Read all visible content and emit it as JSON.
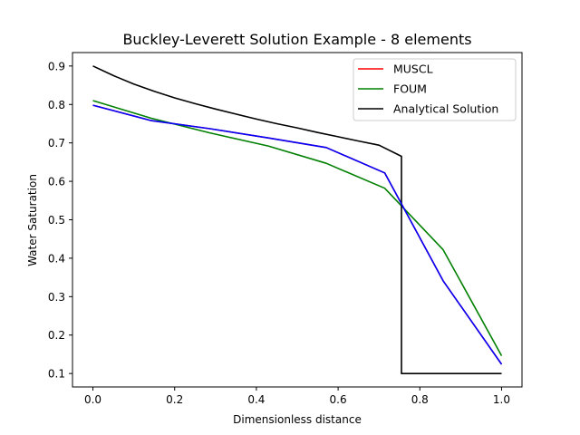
{
  "chart_data": {
    "type": "line",
    "title": "Buckley-Leverett Solution Example - 8 elements",
    "xlabel": "Dimensionless distance",
    "ylabel": "Water Saturation",
    "xlim": [
      -0.05,
      1.05
    ],
    "ylim": [
      0.065,
      0.935
    ],
    "xticks": [
      0.0,
      0.2,
      0.4,
      0.6,
      0.8,
      1.0
    ],
    "xtick_labels": [
      "0.0",
      "0.2",
      "0.4",
      "0.6",
      "0.8",
      "1.0"
    ],
    "yticks": [
      0.1,
      0.2,
      0.3,
      0.4,
      0.5,
      0.6,
      0.7,
      0.8,
      0.9
    ],
    "ytick_labels": [
      "0.1",
      "0.2",
      "0.3",
      "0.4",
      "0.5",
      "0.6",
      "0.7",
      "0.8",
      "0.9"
    ],
    "grid": false,
    "legend_position": "top-right",
    "series": [
      {
        "name": "MUSCL",
        "color": "#ff0000",
        "x": [
          0.0,
          0.143,
          0.286,
          0.429,
          0.571,
          0.714,
          0.857,
          1.0
        ],
        "y": [
          0.798,
          0.758,
          0.737,
          0.713,
          0.688,
          0.622,
          0.341,
          0.124
        ]
      },
      {
        "name": "FOUM",
        "color": "#008000",
        "x": [
          0.0,
          0.143,
          0.286,
          0.429,
          0.571,
          0.714,
          0.857,
          1.0
        ],
        "y": [
          0.81,
          0.764,
          0.726,
          0.692,
          0.647,
          0.582,
          0.422,
          0.146
        ]
      },
      {
        "name": "Analytical Solution",
        "color": "#000000",
        "x": [
          0.0,
          0.05,
          0.1,
          0.15,
          0.2,
          0.25,
          0.3,
          0.35,
          0.4,
          0.45,
          0.5,
          0.55,
          0.6,
          0.65,
          0.7,
          0.755,
          0.755,
          1.0
        ],
        "y": [
          0.9,
          0.875,
          0.853,
          0.834,
          0.817,
          0.802,
          0.788,
          0.775,
          0.762,
          0.75,
          0.739,
          0.727,
          0.716,
          0.705,
          0.694,
          0.665,
          0.1,
          0.1
        ]
      }
    ],
    "overlay_series": {
      "name": "",
      "color": "#0000ff",
      "x": [
        0.0,
        0.143,
        0.286,
        0.429,
        0.571,
        0.714,
        0.857,
        1.0
      ],
      "y": [
        0.798,
        0.758,
        0.737,
        0.713,
        0.688,
        0.622,
        0.341,
        0.124
      ]
    }
  }
}
